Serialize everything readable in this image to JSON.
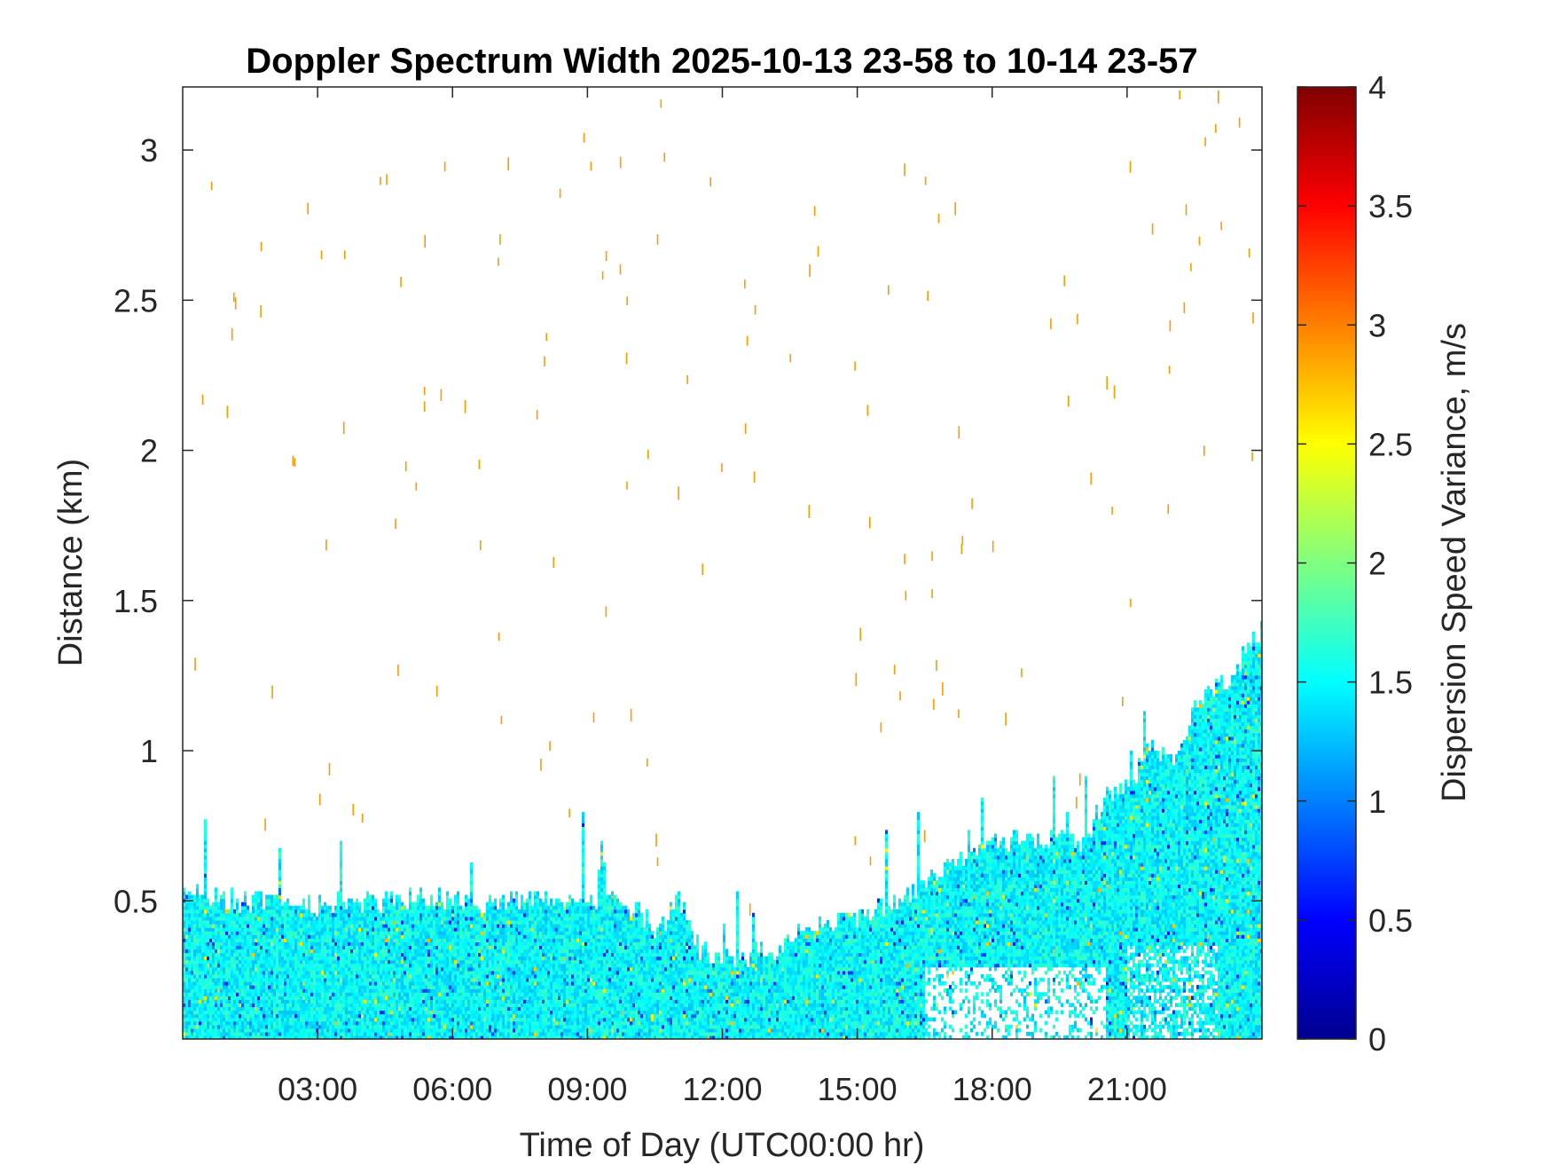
{
  "chart_data": {
    "type": "heatmap",
    "title": "Doppler Spectrum Width 2025-10-13 23-58 to 10-14 23-57",
    "xlabel": "Time of Day (UTC00:00 hr)",
    "ylabel": "Distance (km)",
    "xlim_hours": [
      0,
      24
    ],
    "x_ticks": [
      {
        "hour": 3,
        "label": "03:00"
      },
      {
        "hour": 6,
        "label": "06:00"
      },
      {
        "hour": 9,
        "label": "09:00"
      },
      {
        "hour": 12,
        "label": "12:00"
      },
      {
        "hour": 15,
        "label": "15:00"
      },
      {
        "hour": 18,
        "label": "18:00"
      },
      {
        "hour": 21,
        "label": "21:00"
      }
    ],
    "ylim": [
      0.04,
      3.21
    ],
    "y_ticks": [
      {
        "value": 0.5,
        "label": "0.5"
      },
      {
        "value": 1,
        "label": "1"
      },
      {
        "value": 1.5,
        "label": "1.5"
      },
      {
        "value": 2,
        "label": "2"
      },
      {
        "value": 2.5,
        "label": "2.5"
      },
      {
        "value": 3,
        "label": "3"
      }
    ],
    "colorbar": {
      "label": "Dispersion Speed Variance, m/s",
      "colormap": "jet",
      "range": [
        0,
        4
      ],
      "ticks": [
        {
          "value": 0,
          "label": "0"
        },
        {
          "value": 0.5,
          "label": "0.5"
        },
        {
          "value": 1,
          "label": "1"
        },
        {
          "value": 1.5,
          "label": "1.5"
        },
        {
          "value": 2,
          "label": "2"
        },
        {
          "value": 2.5,
          "label": "2.5"
        },
        {
          "value": 3,
          "label": "3"
        },
        {
          "value": 3.5,
          "label": "3.5"
        },
        {
          "value": 4,
          "label": "4"
        }
      ]
    },
    "signal_top_km_by_hour": [
      [
        0,
        0.52
      ],
      [
        1,
        0.5
      ],
      [
        2,
        0.49
      ],
      [
        3,
        0.48
      ],
      [
        4,
        0.49
      ],
      [
        5,
        0.5
      ],
      [
        6,
        0.5
      ],
      [
        7,
        0.49
      ],
      [
        8,
        0.5
      ],
      [
        9,
        0.51
      ],
      [
        10,
        0.48
      ],
      [
        10.5,
        0.38
      ],
      [
        11,
        0.5
      ],
      [
        11.5,
        0.33
      ],
      [
        12,
        0.3
      ],
      [
        13,
        0.32
      ],
      [
        14,
        0.42
      ],
      [
        15,
        0.44
      ],
      [
        16,
        0.5
      ],
      [
        17,
        0.6
      ],
      [
        18,
        0.7
      ],
      [
        19,
        0.7
      ],
      [
        20,
        0.68
      ],
      [
        20.5,
        0.85
      ],
      [
        21,
        0.88
      ],
      [
        21.5,
        1.0
      ],
      [
        22,
        0.95
      ],
      [
        22.5,
        1.15
      ],
      [
        23,
        1.2
      ],
      [
        23.5,
        1.3
      ],
      [
        24,
        1.4
      ]
    ],
    "typical_value_m_s": 1.5,
    "sparse_noise_value_m_s": 2.9
  }
}
